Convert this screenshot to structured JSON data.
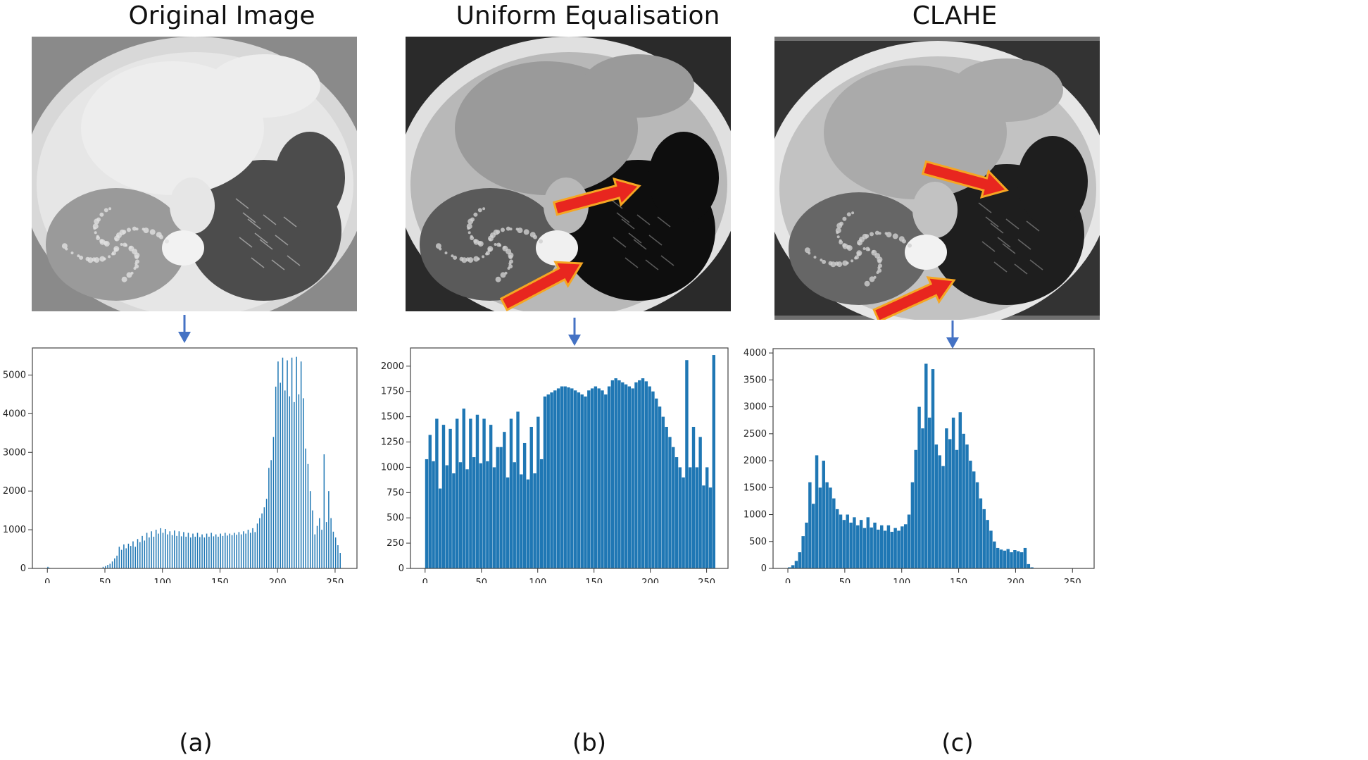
{
  "panels": [
    {
      "title": "Original Image",
      "caption": "(a)"
    },
    {
      "title": "Uniform Equalisation",
      "caption": "(b)"
    },
    {
      "title": "CLAHE",
      "caption": "(c)"
    }
  ],
  "colors": {
    "bar": "#1f77b4",
    "down_arrow": "#4472c4",
    "red_arrow": "#e8261f",
    "red_arrow_edge": "#f5a623"
  },
  "chart_data": [
    {
      "type": "bar",
      "title": "",
      "xlabel": "",
      "ylabel": "",
      "xlim": [
        -13,
        269
      ],
      "ylim": [
        0,
        5700
      ],
      "xticks": [
        "0",
        "50",
        "100",
        "150",
        "200",
        "250"
      ],
      "yticks": [
        "0",
        "1000",
        "2000",
        "3000",
        "4000",
        "5000"
      ],
      "x": [
        0,
        1,
        2,
        48,
        50,
        52,
        54,
        56,
        58,
        60,
        62,
        64,
        66,
        68,
        70,
        72,
        74,
        76,
        78,
        80,
        82,
        84,
        86,
        88,
        90,
        92,
        94,
        96,
        98,
        100,
        102,
        104,
        106,
        108,
        110,
        112,
        114,
        116,
        118,
        120,
        122,
        124,
        126,
        128,
        130,
        132,
        134,
        136,
        138,
        140,
        142,
        144,
        146,
        148,
        150,
        152,
        154,
        156,
        158,
        160,
        162,
        164,
        166,
        168,
        170,
        172,
        174,
        176,
        178,
        180,
        182,
        184,
        186,
        188,
        190,
        192,
        194,
        196,
        198,
        200,
        202,
        204,
        206,
        208,
        210,
        212,
        214,
        216,
        218,
        220,
        222,
        224,
        226,
        228,
        230,
        232,
        234,
        236,
        238,
        240,
        242,
        244,
        246,
        248,
        250,
        252,
        254
      ],
      "values": [
        40,
        20,
        10,
        40,
        60,
        90,
        120,
        180,
        260,
        330,
        560,
        480,
        620,
        520,
        640,
        580,
        700,
        560,
        760,
        680,
        840,
        720,
        920,
        800,
        960,
        820,
        1000,
        900,
        1040,
        920,
        1020,
        880,
        960,
        860,
        980,
        840,
        960,
        830,
        940,
        820,
        920,
        800,
        900,
        820,
        920,
        810,
        880,
        800,
        900,
        820,
        920,
        830,
        880,
        820,
        900,
        840,
        920,
        850,
        900,
        860,
        920,
        870,
        940,
        880,
        960,
        900,
        1000,
        920,
        1040,
        940,
        1160,
        1300,
        1420,
        1580,
        1800,
        2600,
        2800,
        3400,
        4700,
        5350,
        4800,
        5450,
        4600,
        5380,
        4450,
        5450,
        4300,
        5470,
        4500,
        5350,
        4400,
        3100,
        2700,
        2000,
        1500,
        880,
        1100,
        1300,
        1000,
        2950,
        1200,
        2000,
        1300,
        950,
        800,
        600,
        400
      ]
    },
    {
      "type": "bar",
      "title": "",
      "xlabel": "",
      "ylabel": "",
      "xlim": [
        -13,
        269
      ],
      "ylim": [
        0,
        2180
      ],
      "xticks": [
        "0",
        "50",
        "100",
        "150",
        "200",
        "250"
      ],
      "yticks": [
        "0",
        "250",
        "500",
        "750",
        "1000",
        "1250",
        "1500",
        "1750",
        "2000"
      ],
      "x": [
        0,
        3,
        6,
        9,
        12,
        15,
        18,
        21,
        24,
        27,
        30,
        33,
        36,
        39,
        42,
        45,
        48,
        51,
        54,
        57,
        60,
        63,
        66,
        69,
        72,
        75,
        78,
        81,
        84,
        87,
        90,
        93,
        96,
        99,
        102,
        105,
        108,
        111,
        114,
        117,
        120,
        123,
        126,
        129,
        132,
        135,
        138,
        141,
        144,
        147,
        150,
        153,
        156,
        159,
        162,
        165,
        168,
        171,
        174,
        177,
        180,
        183,
        186,
        189,
        192,
        195,
        198,
        201,
        204,
        207,
        210,
        213,
        216,
        219,
        222,
        225,
        228,
        231,
        234,
        237,
        240,
        243,
        246,
        249,
        252,
        255
      ],
      "values": [
        1080,
        1320,
        1060,
        1480,
        790,
        1420,
        1020,
        1380,
        940,
        1480,
        1050,
        1580,
        980,
        1480,
        1100,
        1520,
        1040,
        1480,
        1060,
        1420,
        1000,
        1200,
        1200,
        1350,
        900,
        1480,
        1050,
        1550,
        930,
        1240,
        880,
        1400,
        940,
        1500,
        1080,
        1700,
        1720,
        1740,
        1760,
        1780,
        1800,
        1800,
        1790,
        1780,
        1760,
        1740,
        1720,
        1700,
        1760,
        1780,
        1800,
        1780,
        1760,
        1720,
        1800,
        1860,
        1880,
        1860,
        1840,
        1820,
        1800,
        1780,
        1840,
        1860,
        1880,
        1850,
        1800,
        1750,
        1680,
        1600,
        1500,
        1400,
        1300,
        1200,
        1100,
        1000,
        900,
        2060,
        1000,
        1400,
        1000,
        1300,
        820,
        1000,
        800,
        2110
      ]
    },
    {
      "type": "bar",
      "title": "",
      "xlabel": "",
      "ylabel": "",
      "xlim": [
        -13,
        269
      ],
      "ylim": [
        0,
        4080
      ],
      "xticks": [
        "0",
        "50",
        "100",
        "150",
        "200",
        "250"
      ],
      "yticks": [
        "0",
        "500",
        "1000",
        "1500",
        "2000",
        "2500",
        "3000",
        "3500",
        "4000"
      ],
      "x": [
        0,
        3,
        6,
        9,
        12,
        15,
        18,
        21,
        24,
        27,
        30,
        33,
        36,
        39,
        42,
        45,
        48,
        51,
        54,
        57,
        60,
        63,
        66,
        69,
        72,
        75,
        78,
        81,
        84,
        87,
        90,
        93,
        96,
        99,
        102,
        105,
        108,
        111,
        114,
        117,
        120,
        123,
        126,
        129,
        132,
        135,
        138,
        141,
        144,
        147,
        150,
        153,
        156,
        159,
        162,
        165,
        168,
        171,
        174,
        177,
        180,
        183,
        186,
        189,
        192,
        195,
        198,
        201,
        204,
        207,
        210,
        213,
        216,
        219,
        222,
        225,
        228,
        231,
        234,
        237,
        240,
        243,
        246
      ],
      "values": [
        20,
        60,
        140,
        300,
        600,
        850,
        1600,
        1200,
        2100,
        1500,
        2000,
        1600,
        1500,
        1300,
        1100,
        1000,
        900,
        1000,
        850,
        950,
        800,
        900,
        750,
        950,
        760,
        850,
        720,
        800,
        700,
        800,
        680,
        750,
        700,
        780,
        820,
        1000,
        1600,
        2200,
        3000,
        2600,
        3800,
        2800,
        3700,
        2300,
        2100,
        1900,
        2600,
        2400,
        2800,
        2200,
        2900,
        2500,
        2300,
        2000,
        1800,
        1600,
        1300,
        1100,
        900,
        700,
        500,
        380,
        350,
        330,
        360,
        300,
        340,
        320,
        300,
        380,
        80,
        20,
        0,
        0,
        0,
        0,
        0,
        0,
        0,
        0,
        0,
        0,
        0
      ]
    }
  ]
}
